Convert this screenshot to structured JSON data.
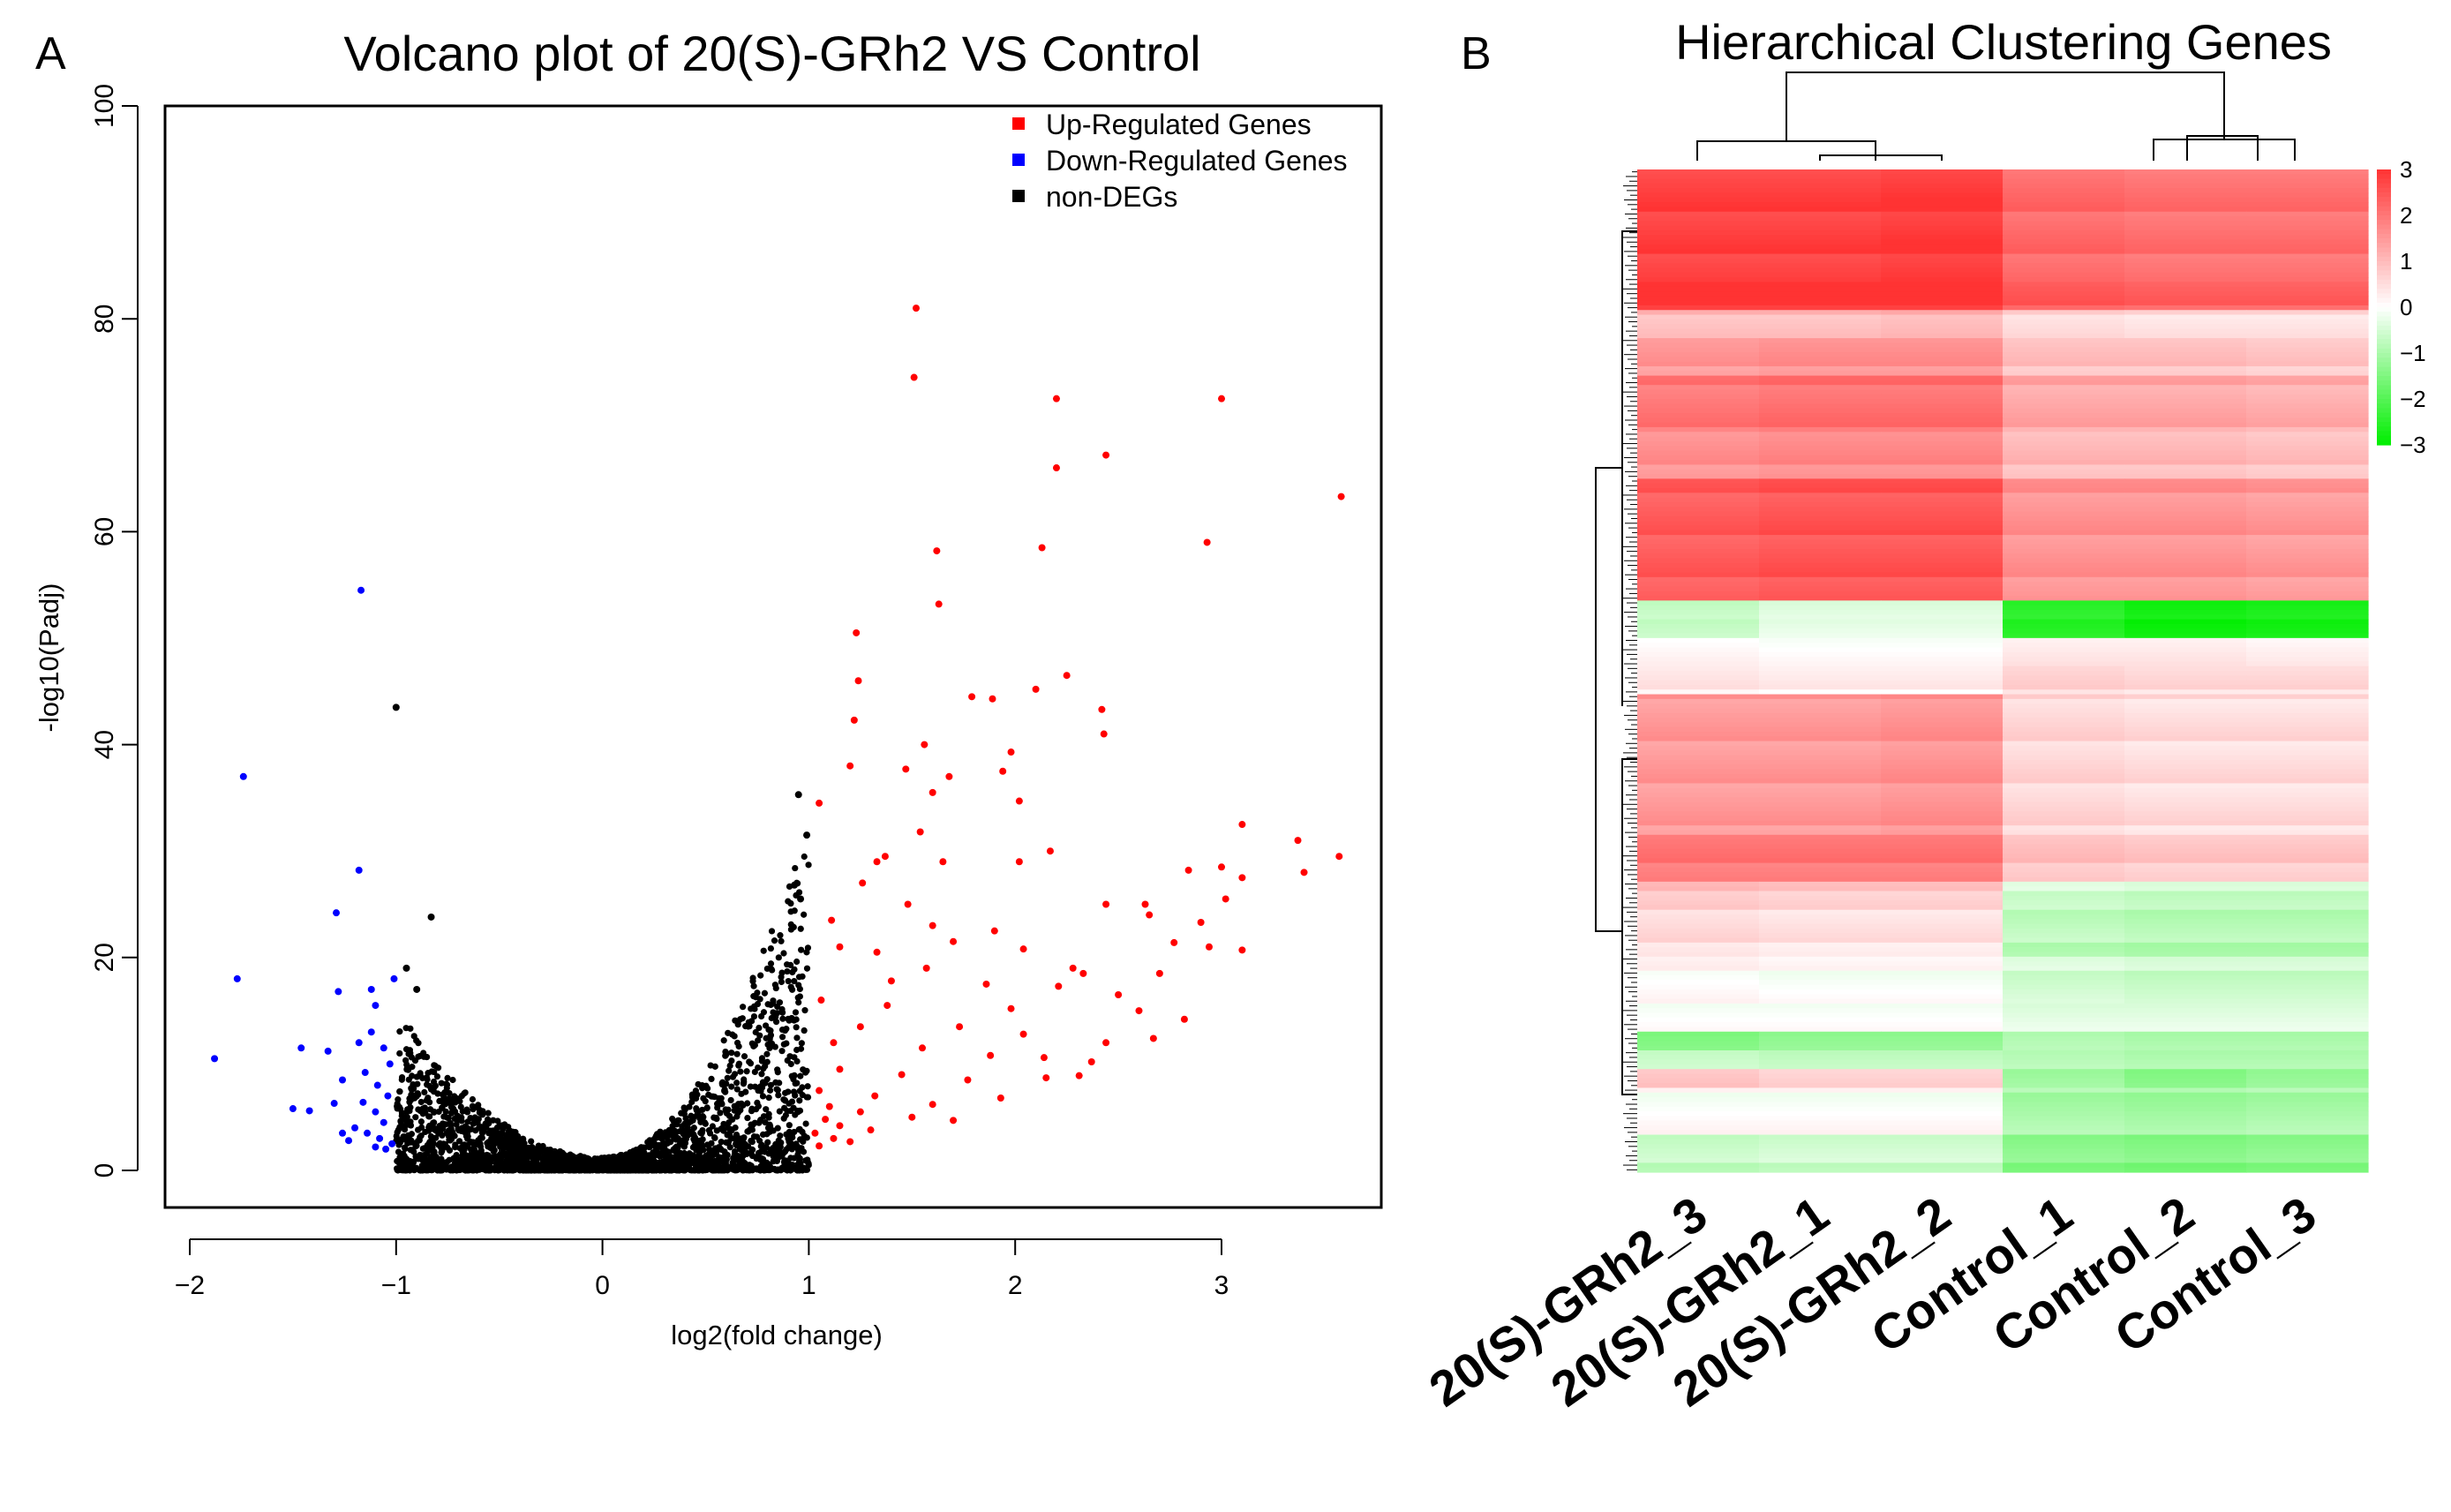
{
  "colors": {
    "up": "#ff0000",
    "down": "#0000ff",
    "nondeg": "#000000",
    "heat_high": "#ff3333",
    "heat_mid": "#ffffff",
    "heat_low": "#00ee00"
  },
  "panels": {
    "a": {
      "label": "A"
    },
    "b": {
      "label": "B"
    }
  },
  "chart_data": [
    {
      "type": "scatter",
      "title": "Volcano plot of 20(S)-GRh2 VS Control",
      "xlabel": "log2(fold change)",
      "ylabel": "-log10(Padj)",
      "xlim": [
        -2.1,
        3.8
      ],
      "ylim": [
        -4,
        102
      ],
      "xticks": [
        -2,
        -1,
        0,
        1,
        2,
        3
      ],
      "yticks": [
        0,
        20,
        40,
        60,
        80,
        100
      ],
      "legend_position": "top-right",
      "legend": [
        "Up-Regulated Genes",
        "Down-Regulated Genes",
        "non-DEGs"
      ],
      "series": [
        {
          "name": "Up-Regulated Genes",
          "color": "#ff0000",
          "points": [
            [
              1.52,
              81
            ],
            [
              1.51,
              74.5
            ],
            [
              2.2,
              72.5
            ],
            [
              3.0,
              72.5
            ],
            [
              2.44,
              67.2
            ],
            [
              2.2,
              66
            ],
            [
              3.58,
              63.3
            ],
            [
              2.93,
              59
            ],
            [
              2.13,
              58.5
            ],
            [
              1.62,
              58.2
            ],
            [
              1.63,
              53.2
            ],
            [
              1.23,
              50.5
            ],
            [
              2.25,
              46.5
            ],
            [
              1.24,
              46
            ],
            [
              1.79,
              44.5
            ],
            [
              1.89,
              44.3
            ],
            [
              2.1,
              45.2
            ],
            [
              2.42,
              43.3
            ],
            [
              2.43,
              41
            ],
            [
              1.22,
              42.3
            ],
            [
              1.2,
              38
            ],
            [
              1.47,
              37.7
            ],
            [
              1.56,
              40
            ],
            [
              1.98,
              39.3
            ],
            [
              1.6,
              35.5
            ],
            [
              1.68,
              37
            ],
            [
              1.54,
              31.8
            ],
            [
              2.02,
              34.7
            ],
            [
              1.94,
              37.5
            ],
            [
              1.05,
              34.5
            ],
            [
              3.1,
              32.5
            ],
            [
              3.37,
              31
            ],
            [
              2.17,
              30
            ],
            [
              1.37,
              29.5
            ],
            [
              1.33,
              29
            ],
            [
              1.65,
              29
            ],
            [
              2.02,
              29
            ],
            [
              3.57,
              29.5
            ],
            [
              3.0,
              28.5
            ],
            [
              2.84,
              28.2
            ],
            [
              3.4,
              28
            ],
            [
              3.1,
              27.5
            ],
            [
              1.26,
              27
            ],
            [
              1.48,
              25
            ],
            [
              2.44,
              25
            ],
            [
              2.63,
              25
            ],
            [
              3.02,
              25.5
            ],
            [
              1.11,
              23.5
            ],
            [
              1.6,
              23
            ],
            [
              1.9,
              22.5
            ],
            [
              2.65,
              24
            ],
            [
              2.9,
              23.3
            ],
            [
              1.15,
              21
            ],
            [
              1.33,
              20.5
            ],
            [
              1.7,
              21.5
            ],
            [
              2.04,
              20.8
            ],
            [
              2.33,
              18.5
            ],
            [
              2.7,
              18.5
            ],
            [
              2.94,
              21
            ],
            [
              3.1,
              20.7
            ],
            [
              2.77,
              21.4
            ],
            [
              1.86,
              17.5
            ],
            [
              1.4,
              17.8
            ],
            [
              1.57,
              19
            ],
            [
              2.21,
              17.3
            ],
            [
              2.28,
              19
            ],
            [
              2.5,
              16.5
            ],
            [
              1.06,
              16
            ],
            [
              1.38,
              15.5
            ],
            [
              1.98,
              15.2
            ],
            [
              2.6,
              15
            ],
            [
              2.82,
              14.2
            ],
            [
              1.25,
              13.5
            ],
            [
              1.73,
              13.5
            ],
            [
              2.04,
              12.8
            ],
            [
              2.44,
              12
            ],
            [
              1.12,
              12
            ],
            [
              1.55,
              11.5
            ],
            [
              1.88,
              10.8
            ],
            [
              2.14,
              10.6
            ],
            [
              2.37,
              10.2
            ],
            [
              2.67,
              12.4
            ],
            [
              1.15,
              9.5
            ],
            [
              1.45,
              9
            ],
            [
              1.77,
              8.5
            ],
            [
              2.15,
              8.7
            ],
            [
              2.31,
              8.9
            ],
            [
              1.05,
              7.5
            ],
            [
              1.32,
              7
            ],
            [
              1.6,
              6.2
            ],
            [
              1.93,
              6.8
            ],
            [
              1.1,
              6
            ],
            [
              1.25,
              5.5
            ],
            [
              1.5,
              5
            ],
            [
              1.7,
              4.7
            ],
            [
              1.08,
              4.8
            ],
            [
              1.15,
              4.2
            ],
            [
              1.3,
              3.8
            ],
            [
              1.03,
              3.5
            ],
            [
              1.12,
              3
            ],
            [
              1.2,
              2.7
            ],
            [
              1.05,
              2.3
            ]
          ]
        },
        {
          "name": "Down-Regulated Genes",
          "color": "#0000ff",
          "points": [
            [
              -1.17,
              54.5
            ],
            [
              -1.74,
              37
            ],
            [
              -1.18,
              28.2
            ],
            [
              -1.29,
              24.2
            ],
            [
              -1.77,
              18
            ],
            [
              -1.01,
              18
            ],
            [
              -1.28,
              16.8
            ],
            [
              -1.12,
              17
            ],
            [
              -1.1,
              15.5
            ],
            [
              -1.88,
              10.5
            ],
            [
              -1.46,
              11.5
            ],
            [
              -1.33,
              11.2
            ],
            [
              -1.18,
              12
            ],
            [
              -1.12,
              13
            ],
            [
              -1.06,
              11.5
            ],
            [
              -1.03,
              10
            ],
            [
              -1.15,
              9.2
            ],
            [
              -1.09,
              8
            ],
            [
              -1.26,
              8.5
            ],
            [
              -1.04,
              7
            ],
            [
              -1.3,
              6.3
            ],
            [
              -1.5,
              5.8
            ],
            [
              -1.42,
              5.6
            ],
            [
              -1.16,
              6.4
            ],
            [
              -1.1,
              5.5
            ],
            [
              -1.06,
              4.5
            ],
            [
              -1.2,
              4
            ],
            [
              -1.14,
              3.5
            ],
            [
              -1.26,
              3.5
            ],
            [
              -1.08,
              3
            ],
            [
              -1.23,
              2.8
            ],
            [
              -1.02,
              2.5
            ],
            [
              -1.1,
              2.2
            ],
            [
              -1.05,
              2
            ]
          ]
        },
        {
          "name": "non-DEGs",
          "color": "#000000",
          "points_note": "dense V-shaped cloud between log2FC -1 and 1 (max -log10(Padj) ~ 35); outliers listed",
          "points": [
            [
              -1.0,
              43.5
            ],
            [
              -0.83,
              23.8
            ],
            [
              0.95,
              35.3
            ],
            [
              0.99,
              31.5
            ],
            [
              0.93,
              26.8
            ],
            [
              -0.95,
              19
            ],
            [
              -0.9,
              17
            ],
            [
              0.96,
              25.5
            ]
          ]
        }
      ]
    },
    {
      "type": "heatmap",
      "title": "Hierarchical Clustering Genes",
      "columns": [
        "20(S)-GRh2_3",
        "20(S)-GRh2_1",
        "20(S)-GRh2_2",
        "Control_1",
        "Control_2",
        "Control_3"
      ],
      "colorbar": {
        "ticks": [
          3,
          2,
          1,
          0,
          -1,
          -2,
          -3
        ],
        "tick_labels": [
          "3",
          "2",
          "1",
          "0",
          "−1",
          "−2",
          "−3"
        ],
        "low": "#00ee00",
        "mid": "#ffffff",
        "high": "#ff3333"
      },
      "row_blocks": [
        {
          "rows": 24,
          "values": [
            2.8,
            2.8,
            2.9,
            2.2,
            2.1,
            2.1
          ]
        },
        {
          "rows": 6,
          "values": [
            3.0,
            3.0,
            3.0,
            2.4,
            2.3,
            2.3
          ]
        },
        {
          "rows": 6,
          "values": [
            1.0,
            1.0,
            1.1,
            0.6,
            0.5,
            0.5
          ]
        },
        {
          "rows": 8,
          "values": [
            1.5,
            1.6,
            1.6,
            0.9,
            0.9,
            0.8
          ]
        },
        {
          "rows": 12,
          "values": [
            2.0,
            2.1,
            2.1,
            1.3,
            1.3,
            1.2
          ]
        },
        {
          "rows": 10,
          "values": [
            1.6,
            1.7,
            1.7,
            1.0,
            1.0,
            0.9
          ]
        },
        {
          "rows": 26,
          "values": [
            2.4,
            2.5,
            2.5,
            1.6,
            1.6,
            1.5
          ]
        },
        {
          "rows": 4,
          "values": [
            -0.6,
            -0.3,
            -0.3,
            -2.4,
            -2.7,
            -2.6
          ]
        },
        {
          "rows": 4,
          "values": [
            -0.8,
            -0.4,
            -0.4,
            -2.7,
            -3.0,
            -2.9
          ]
        },
        {
          "rows": 6,
          "values": [
            0.2,
            0.1,
            0.1,
            0.4,
            0.4,
            0.3
          ]
        },
        {
          "rows": 6,
          "values": [
            0.3,
            0.2,
            0.2,
            0.6,
            0.5,
            0.5
          ]
        },
        {
          "rows": 30,
          "values": [
            1.5,
            1.5,
            1.6,
            0.6,
            0.5,
            0.5
          ]
        },
        {
          "rows": 10,
          "values": [
            2.0,
            2.0,
            2.0,
            0.9,
            0.8,
            0.8
          ]
        },
        {
          "rows": 6,
          "values": [
            0.9,
            0.8,
            0.8,
            -0.5,
            -0.6,
            -0.6
          ]
        },
        {
          "rows": 10,
          "values": [
            0.5,
            0.4,
            0.4,
            -0.8,
            -0.9,
            -0.9
          ]
        },
        {
          "rows": 10,
          "values": [
            0.1,
            0.0,
            0.0,
            -0.5,
            -0.6,
            -0.6
          ]
        },
        {
          "rows": 6,
          "values": [
            0.0,
            0.0,
            0.0,
            -0.3,
            -0.3,
            -0.3
          ]
        },
        {
          "rows": 4,
          "values": [
            -1.6,
            -1.4,
            -1.4,
            -1.0,
            -1.1,
            -1.1
          ]
        },
        {
          "rows": 4,
          "values": [
            -0.5,
            -0.6,
            -0.6,
            -0.7,
            -0.8,
            -0.8
          ]
        },
        {
          "rows": 4,
          "values": [
            0.8,
            0.6,
            0.6,
            -1.2,
            -1.5,
            -1.3
          ]
        },
        {
          "rows": 10,
          "values": [
            0.0,
            0.0,
            0.0,
            -1.0,
            -1.1,
            -1.0
          ]
        },
        {
          "rows": 8,
          "values": [
            -0.7,
            -0.6,
            -0.6,
            -1.4,
            -1.5,
            -1.4
          ]
        }
      ]
    }
  ]
}
